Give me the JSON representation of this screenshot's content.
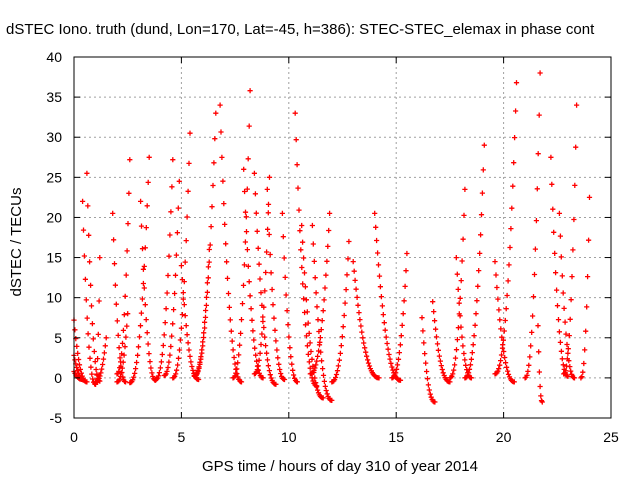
{
  "chart_data": {
    "type": "scatter",
    "title": "dSTEC Iono. truth (dund, Lon=170, Lat=-45, h=386): STEC-STEC_elemax in phase cont",
    "xlabel": "GPS time / hours of day 310 of year 2014",
    "ylabel": "dSTEC  / TECUs",
    "xlim": [
      0,
      25
    ],
    "ylim": [
      -5,
      40
    ],
    "xticks": [
      0,
      5,
      10,
      15,
      20,
      25
    ],
    "yticks": [
      -5,
      0,
      5,
      10,
      15,
      20,
      25,
      30,
      35,
      40
    ],
    "grid": true,
    "legend": "none",
    "marker": "plus",
    "color": "#ff0000",
    "arcs": [
      {
        "peaks": [
          [
            0.0,
            7.2
          ]
        ],
        "min": [
          0.6,
          -0.5
        ]
      },
      {
        "peaks": [
          [
            0.0,
            2.8
          ]
        ],
        "min": [
          0.5,
          -0.3
        ]
      },
      {
        "peaks": [
          [
            0.0,
            0.8
          ]
        ],
        "min": [
          0.4,
          -0.2
        ]
      },
      {
        "peaks": [
          [
            0.6,
            25.5
          ]
        ],
        "min": [
          1.2,
          -0.4
        ]
      },
      {
        "peaks": [
          [
            0.4,
            22.0
          ]
        ],
        "min": [
          1.0,
          -0.8
        ]
      },
      {
        "peaks": [
          [
            1.2,
            15.0
          ]
        ],
        "min": [
          1.0,
          -0.8
        ]
      },
      {
        "peaks": [
          [
            1.8,
            20.5
          ]
        ],
        "min": [
          2.4,
          -0.5
        ]
      },
      {
        "peaks": [
          [
            1.5,
            5.0
          ]
        ],
        "min": [
          1.0,
          -0.5
        ]
      },
      {
        "peaks": [
          [
            2.6,
            27.2
          ]
        ],
        "min": [
          2.0,
          0.5
        ]
      },
      {
        "peaks": [
          [
            2.5,
            8.0
          ]
        ],
        "min": [
          2.0,
          -0.5
        ]
      },
      {
        "peaks": [
          [
            3.5,
            27.5
          ]
        ],
        "min": [
          2.6,
          -0.6
        ]
      },
      {
        "peaks": [
          [
            3.1,
            22.0
          ]
        ],
        "min": [
          3.8,
          -0.3
        ]
      },
      {
        "peaks": [
          [
            4.6,
            27.2
          ]
        ],
        "min": [
          3.8,
          -0.2
        ]
      },
      {
        "peaks": [
          [
            4.9,
            24.5
          ]
        ],
        "min": [
          4.2,
          0.3
        ]
      },
      {
        "peaks": [
          [
            5.4,
            30.5
          ]
        ],
        "min": [
          4.6,
          0.0
        ]
      },
      {
        "peaks": [
          [
            5.0,
            14.0
          ]
        ],
        "min": [
          5.8,
          -0.2
        ]
      },
      {
        "peaks": [
          [
            6.3,
            16.0
          ]
        ],
        "min": [
          5.6,
          0.3
        ]
      },
      {
        "peaks": [
          [
            6.6,
            33.0
          ]
        ],
        "min": [
          5.6,
          0.2
        ]
      },
      {
        "peaks": [
          [
            6.8,
            34.0
          ]
        ],
        "min": [
          7.8,
          -0.5
        ]
      },
      {
        "peaks": [
          [
            8.2,
            35.8
          ]
        ],
        "min": [
          7.4,
          0.0
        ]
      },
      {
        "peaks": [
          [
            7.9,
            26.0
          ]
        ],
        "min": [
          8.8,
          0.0
        ]
      },
      {
        "peaks": [
          [
            8.4,
            25.5
          ]
        ],
        "min": [
          9.4,
          -0.8
        ]
      },
      {
        "peaks": [
          [
            9.0,
            23.5
          ]
        ],
        "min": [
          9.8,
          -0.2
        ]
      },
      {
        "peaks": [
          [
            9.1,
            25.0
          ]
        ],
        "min": [
          8.4,
          0.5
        ]
      },
      {
        "peaks": [
          [
            9.7,
            20.5
          ]
        ],
        "min": [
          10.4,
          -0.5
        ]
      },
      {
        "peaks": [
          [
            10.3,
            33.0
          ]
        ],
        "min": [
          11.3,
          -1.0
        ]
      },
      {
        "peaks": [
          [
            10.6,
            19.0
          ]
        ],
        "min": [
          11.6,
          -2.5
        ]
      },
      {
        "peaks": [
          [
            11.1,
            19.0
          ]
        ],
        "min": [
          12.0,
          -2.8
        ]
      },
      {
        "peaks": [
          [
            11.9,
            20.5
          ]
        ],
        "min": [
          11.0,
          0.5
        ]
      },
      {
        "peaks": [
          [
            12.8,
            17.0
          ]
        ],
        "min": [
          12.0,
          -0.5
        ]
      },
      {
        "peaks": [
          [
            13.0,
            14.5
          ]
        ],
        "min": [
          14.2,
          0.0
        ]
      },
      {
        "peaks": [
          [
            14.0,
            20.5
          ]
        ],
        "min": [
          15.2,
          -0.3
        ]
      },
      {
        "peaks": [
          [
            15.5,
            15.5
          ]
        ],
        "min": [
          14.8,
          0.0
        ]
      },
      {
        "peaks": [
          [
            16.2,
            7.5
          ]
        ],
        "min": [
          16.8,
          -3.0
        ]
      },
      {
        "peaks": [
          [
            16.7,
            9.5
          ]
        ],
        "min": [
          17.5,
          -0.5
        ]
      },
      {
        "peaks": [
          [
            17.8,
            15.0
          ]
        ],
        "min": [
          18.5,
          0.0
        ]
      },
      {
        "peaks": [
          [
            18.2,
            23.5
          ]
        ],
        "min": [
          17.5,
          0.0
        ]
      },
      {
        "peaks": [
          [
            19.1,
            29.0
          ]
        ],
        "min": [
          18.2,
          0.0
        ]
      },
      {
        "peaks": [
          [
            19.6,
            14.5
          ]
        ],
        "min": [
          20.5,
          -0.5
        ]
      },
      {
        "peaks": [
          [
            20.6,
            36.8
          ]
        ],
        "min": [
          19.6,
          0.5
        ]
      },
      {
        "peaks": [
          [
            21.7,
            38.0
          ]
        ],
        "min": [
          21.0,
          0.0
        ]
      },
      {
        "peaks": [
          [
            21.6,
            6.5
          ]
        ],
        "min": [
          21.8,
          -3.0
        ]
      },
      {
        "peaks": [
          [
            22.2,
            27.5
          ]
        ],
        "min": [
          23.0,
          0.2
        ]
      },
      {
        "peaks": [
          [
            22.6,
            20.5
          ]
        ],
        "min": [
          23.3,
          0.0
        ]
      },
      {
        "peaks": [
          [
            23.4,
            34.0
          ]
        ],
        "min": [
          22.8,
          0.5
        ]
      },
      {
        "peaks": [
          [
            24.0,
            22.5
          ]
        ],
        "min": [
          23.6,
          0.0
        ]
      }
    ]
  }
}
